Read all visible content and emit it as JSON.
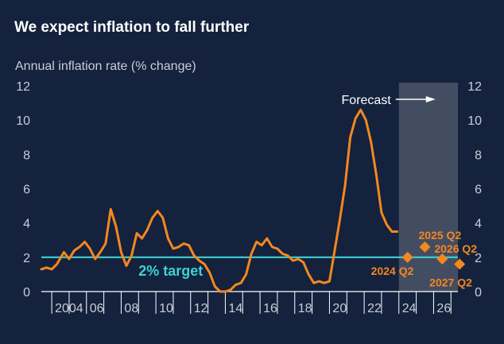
{
  "title": "We expect inflation to fall further",
  "colors": {
    "background": "#14223d",
    "line": "#f5871f",
    "target": "#3fd0d4",
    "forecast_shade": "#4b5568",
    "text": "#c9cdd6"
  },
  "chart_data": {
    "type": "line",
    "title": "We expect inflation to fall further",
    "ylabel": "Annual inflation rate (% change)",
    "xlabel": "",
    "xlim": [
      2003.4,
      2027.4
    ],
    "ylim": [
      0,
      12
    ],
    "x_tick_labels": [
      {
        "x": 2004,
        "label": "2004"
      },
      {
        "x": 2006,
        "label": "06"
      },
      {
        "x": 2008,
        "label": "08"
      },
      {
        "x": 2010,
        "label": "10"
      },
      {
        "x": 2012,
        "label": "12"
      },
      {
        "x": 2014,
        "label": "14"
      },
      {
        "x": 2016,
        "label": "16"
      },
      {
        "x": 2018,
        "label": "18"
      },
      {
        "x": 2020,
        "label": "20"
      },
      {
        "x": 2022,
        "label": "22"
      },
      {
        "x": 2024,
        "label": "24"
      },
      {
        "x": 2026,
        "label": "26"
      }
    ],
    "y_ticks": [
      0,
      2,
      4,
      6,
      8,
      10,
      12
    ],
    "grid": false,
    "series": [
      {
        "type": "line",
        "x": [
          2003.4,
          2003.7,
          2004.0,
          2004.3,
          2004.7,
          2005.0,
          2005.3,
          2005.6,
          2005.9,
          2006.2,
          2006.5,
          2006.8,
          2007.1,
          2007.4,
          2007.7,
          2008.0,
          2008.3,
          2008.6,
          2008.9,
          2009.2,
          2009.5,
          2009.8,
          2010.1,
          2010.4,
          2010.7,
          2011.0,
          2011.3,
          2011.6,
          2011.9,
          2012.2,
          2012.5,
          2012.8,
          2013.1,
          2013.4,
          2013.7,
          2014.0,
          2014.3,
          2014.6,
          2014.9,
          2015.2,
          2015.5,
          2015.8,
          2016.1,
          2016.4,
          2016.7,
          2017.0,
          2017.3,
          2017.6,
          2017.9,
          2018.2,
          2018.5,
          2018.8,
          2019.1,
          2019.4,
          2019.7,
          2020.0,
          2020.3,
          2020.6,
          2020.9,
          2021.2,
          2021.5,
          2021.8,
          2022.1,
          2022.4,
          2022.7,
          2023.0,
          2023.3,
          2023.6,
          2023.9
        ],
        "y": [
          1.3,
          1.4,
          1.3,
          1.6,
          2.3,
          1.9,
          2.4,
          2.6,
          2.9,
          2.5,
          1.9,
          2.3,
          2.8,
          4.8,
          3.8,
          2.3,
          1.5,
          2.1,
          3.4,
          3.1,
          3.6,
          4.3,
          4.7,
          4.3,
          3.1,
          2.5,
          2.6,
          2.8,
          2.7,
          2.1,
          1.8,
          1.6,
          1.1,
          0.3,
          0.0,
          0.0,
          0.1,
          0.4,
          0.5,
          1.0,
          2.2,
          2.9,
          2.7,
          3.1,
          2.6,
          2.5,
          2.2,
          2.1,
          1.8,
          1.9,
          1.7,
          1.0,
          0.5,
          0.6,
          0.5,
          0.6,
          2.4,
          4.2,
          6.2,
          9.0,
          10.1,
          10.6,
          10.0,
          8.7,
          6.8,
          4.6,
          3.9,
          3.5,
          3.5
        ]
      },
      {
        "type": "markers",
        "points": [
          {
            "x": 2024.5,
            "y": 2.0,
            "label": "2024 Q2"
          },
          {
            "x": 2025.5,
            "y": 2.6,
            "label": "2025 Q2"
          },
          {
            "x": 2026.5,
            "y": 1.9,
            "label": "2026 Q2"
          },
          {
            "x": 2027.5,
            "y": 1.6,
            "label": "2027 Q2"
          }
        ]
      }
    ],
    "target": {
      "value": 2,
      "label": "2% target"
    },
    "forecast": {
      "start": 2024.0,
      "end": 2027.4,
      "label": "Forecast"
    }
  }
}
